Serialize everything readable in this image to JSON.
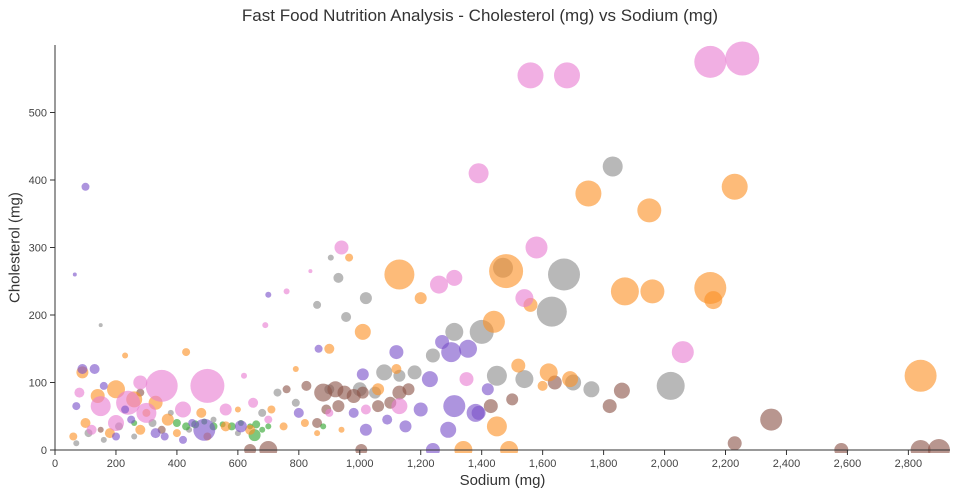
{
  "chart_data": {
    "type": "scatter",
    "title": "Fast Food Nutrition Analysis - Cholesterol (mg) vs Sodium (mg)",
    "xlabel": "Sodium (mg)",
    "ylabel": "Cholesterol (mg)",
    "xlim": [
      0,
      2930
    ],
    "ylim": [
      0,
      600
    ],
    "grid": false,
    "legend": "none",
    "marker_opacity": 0.62,
    "xticks": [
      {
        "value": 0,
        "label": "0"
      },
      {
        "value": 200,
        "label": "200"
      },
      {
        "value": 400,
        "label": "400"
      },
      {
        "value": 600,
        "label": "600"
      },
      {
        "value": 800,
        "label": "800"
      },
      {
        "value": 1000,
        "label": "1,000"
      },
      {
        "value": 1200,
        "label": "1,200"
      },
      {
        "value": 1400,
        "label": "1,400"
      },
      {
        "value": 1600,
        "label": "1,600"
      },
      {
        "value": 1800,
        "label": "1,800"
      },
      {
        "value": 2000,
        "label": "2,000"
      },
      {
        "value": 2200,
        "label": "2,200"
      },
      {
        "value": 2400,
        "label": "2,400"
      },
      {
        "value": 2600,
        "label": "2,600"
      },
      {
        "value": 2800,
        "label": "2,800"
      }
    ],
    "yticks": [
      {
        "value": 0,
        "label": "0"
      },
      {
        "value": 100,
        "label": "100"
      },
      {
        "value": 200,
        "label": "200"
      },
      {
        "value": 300,
        "label": "300"
      },
      {
        "value": 400,
        "label": "400"
      },
      {
        "value": 500,
        "label": "500"
      }
    ],
    "point_format": "[sodium_mg, cholesterol_mg, bubble_radius_px]",
    "series": [
      {
        "name": "gray",
        "color": "#8c8c8c",
        "points": [
          [
            70,
            10,
            3
          ],
          [
            110,
            25,
            4
          ],
          [
            160,
            15,
            3
          ],
          [
            210,
            35,
            4
          ],
          [
            260,
            20,
            3
          ],
          [
            320,
            40,
            4
          ],
          [
            150,
            185,
            2
          ],
          [
            380,
            55,
            3
          ],
          [
            440,
            30,
            3
          ],
          [
            520,
            45,
            3
          ],
          [
            600,
            25,
            3
          ],
          [
            680,
            55,
            4
          ],
          [
            730,
            85,
            4
          ],
          [
            790,
            70,
            4
          ],
          [
            860,
            215,
            4
          ],
          [
            905,
            285,
            3
          ],
          [
            930,
            255,
            5
          ],
          [
            955,
            197,
            5
          ],
          [
            900,
            90,
            5
          ],
          [
            1000,
            90,
            7
          ],
          [
            1020,
            225,
            6
          ],
          [
            1050,
            85,
            6
          ],
          [
            1080,
            115,
            8
          ],
          [
            1130,
            110,
            6
          ],
          [
            1180,
            115,
            7
          ],
          [
            1240,
            140,
            7
          ],
          [
            1310,
            175,
            9
          ],
          [
            1400,
            175,
            12
          ],
          [
            1450,
            110,
            10
          ],
          [
            1470,
            270,
            10
          ],
          [
            1540,
            105,
            9
          ],
          [
            1630,
            205,
            15
          ],
          [
            1670,
            260,
            16
          ],
          [
            1700,
            100,
            8
          ],
          [
            1760,
            90,
            8
          ],
          [
            1830,
            420,
            10
          ],
          [
            2020,
            95,
            14
          ]
        ]
      },
      {
        "name": "brown",
        "color": "#8c564b",
        "points": [
          [
            150,
            30,
            3
          ],
          [
            280,
            85,
            4
          ],
          [
            350,
            30,
            4
          ],
          [
            640,
            0,
            6
          ],
          [
            700,
            0,
            9
          ],
          [
            760,
            90,
            4
          ],
          [
            825,
            95,
            5
          ],
          [
            860,
            40,
            5
          ],
          [
            880,
            85,
            9
          ],
          [
            890,
            60,
            5
          ],
          [
            920,
            90,
            8
          ],
          [
            930,
            65,
            6
          ],
          [
            950,
            85,
            7
          ],
          [
            980,
            80,
            7
          ],
          [
            1005,
            0,
            6
          ],
          [
            1010,
            85,
            6
          ],
          [
            1060,
            65,
            6
          ],
          [
            1100,
            70,
            6
          ],
          [
            1130,
            85,
            7
          ],
          [
            1160,
            90,
            6
          ],
          [
            1430,
            65,
            7
          ],
          [
            1500,
            75,
            6
          ],
          [
            1640,
            100,
            7
          ],
          [
            1820,
            65,
            7
          ],
          [
            1860,
            88,
            8
          ],
          [
            2230,
            10,
            7
          ],
          [
            2350,
            45,
            11
          ],
          [
            2580,
            0,
            7
          ],
          [
            2840,
            0,
            10
          ],
          [
            2900,
            0,
            11
          ]
        ]
      },
      {
        "name": "green",
        "color": "#2fa42d",
        "points": [
          [
            260,
            40,
            3
          ],
          [
            400,
            40,
            4
          ],
          [
            430,
            35,
            4
          ],
          [
            460,
            38,
            4
          ],
          [
            490,
            42,
            3
          ],
          [
            520,
            35,
            4
          ],
          [
            550,
            38,
            3
          ],
          [
            580,
            35,
            4
          ],
          [
            610,
            40,
            3
          ],
          [
            640,
            35,
            3
          ],
          [
            655,
            22,
            6
          ],
          [
            660,
            38,
            4
          ],
          [
            680,
            30,
            3
          ],
          [
            700,
            35,
            3
          ],
          [
            880,
            35,
            3
          ]
        ]
      },
      {
        "name": "orange",
        "color": "#fb9127",
        "points": [
          [
            60,
            20,
            4
          ],
          [
            90,
            115,
            6
          ],
          [
            100,
            40,
            5
          ],
          [
            140,
            80,
            7
          ],
          [
            180,
            25,
            5
          ],
          [
            200,
            90,
            9
          ],
          [
            230,
            140,
            3
          ],
          [
            260,
            75,
            8
          ],
          [
            280,
            30,
            5
          ],
          [
            300,
            55,
            4
          ],
          [
            330,
            70,
            7
          ],
          [
            370,
            45,
            6
          ],
          [
            400,
            25,
            4
          ],
          [
            430,
            145,
            4
          ],
          [
            480,
            55,
            5
          ],
          [
            500,
            20,
            4
          ],
          [
            560,
            35,
            5
          ],
          [
            600,
            60,
            3
          ],
          [
            640,
            30,
            5
          ],
          [
            710,
            60,
            4
          ],
          [
            750,
            35,
            4
          ],
          [
            790,
            120,
            3
          ],
          [
            820,
            40,
            4
          ],
          [
            860,
            25,
            3
          ],
          [
            900,
            150,
            5
          ],
          [
            940,
            30,
            3
          ],
          [
            965,
            285,
            4
          ],
          [
            1010,
            175,
            8
          ],
          [
            1060,
            90,
            6
          ],
          [
            1120,
            120,
            5
          ],
          [
            1130,
            260,
            15
          ],
          [
            1200,
            225,
            6
          ],
          [
            1340,
            0,
            9
          ],
          [
            1440,
            190,
            11
          ],
          [
            1450,
            35,
            10
          ],
          [
            1480,
            265,
            17
          ],
          [
            1490,
            0,
            9
          ],
          [
            1520,
            125,
            7
          ],
          [
            1560,
            215,
            7
          ],
          [
            1600,
            95,
            5
          ],
          [
            1620,
            115,
            9
          ],
          [
            1690,
            105,
            8
          ],
          [
            1750,
            380,
            13
          ],
          [
            1870,
            235,
            14
          ],
          [
            1950,
            355,
            12
          ],
          [
            1960,
            235,
            12
          ],
          [
            2150,
            240,
            16
          ],
          [
            2160,
            222,
            9
          ],
          [
            2230,
            390,
            13
          ],
          [
            2840,
            110,
            16
          ]
        ]
      },
      {
        "name": "pink",
        "color": "#e87ed2",
        "points": [
          [
            80,
            85,
            5
          ],
          [
            120,
            30,
            5
          ],
          [
            150,
            65,
            10
          ],
          [
            200,
            40,
            8
          ],
          [
            240,
            70,
            12
          ],
          [
            280,
            100,
            7
          ],
          [
            300,
            55,
            10
          ],
          [
            350,
            95,
            16
          ],
          [
            420,
            60,
            8
          ],
          [
            500,
            95,
            17
          ],
          [
            560,
            60,
            6
          ],
          [
            620,
            110,
            3
          ],
          [
            650,
            70,
            5
          ],
          [
            690,
            185,
            3
          ],
          [
            700,
            45,
            4
          ],
          [
            760,
            235,
            3
          ],
          [
            838,
            265,
            2
          ],
          [
            900,
            55,
            4
          ],
          [
            940,
            300,
            7
          ],
          [
            1020,
            60,
            5
          ],
          [
            1130,
            65,
            8
          ],
          [
            1260,
            245,
            9
          ],
          [
            1310,
            255,
            8
          ],
          [
            1350,
            105,
            7
          ],
          [
            1390,
            410,
            10
          ],
          [
            1540,
            225,
            9
          ],
          [
            1560,
            555,
            13
          ],
          [
            1580,
            300,
            11
          ],
          [
            1680,
            555,
            13
          ],
          [
            2060,
            145,
            11
          ],
          [
            2150,
            575,
            16
          ],
          [
            2255,
            580,
            17
          ]
        ]
      },
      {
        "name": "purple",
        "color": "#7a52c9",
        "points": [
          [
            65,
            260,
            2
          ],
          [
            70,
            65,
            4
          ],
          [
            90,
            120,
            5
          ],
          [
            100,
            390,
            4
          ],
          [
            130,
            120,
            5
          ],
          [
            160,
            95,
            4
          ],
          [
            200,
            20,
            4
          ],
          [
            230,
            60,
            4
          ],
          [
            250,
            45,
            4
          ],
          [
            330,
            25,
            5
          ],
          [
            360,
            20,
            4
          ],
          [
            420,
            15,
            4
          ],
          [
            450,
            40,
            4
          ],
          [
            490,
            30,
            11
          ],
          [
            610,
            35,
            6
          ],
          [
            700,
            230,
            3
          ],
          [
            800,
            55,
            5
          ],
          [
            865,
            150,
            4
          ],
          [
            980,
            55,
            5
          ],
          [
            1010,
            112,
            6
          ],
          [
            1020,
            30,
            6
          ],
          [
            1090,
            45,
            5
          ],
          [
            1120,
            145,
            7
          ],
          [
            1150,
            35,
            6
          ],
          [
            1200,
            60,
            7
          ],
          [
            1230,
            105,
            8
          ],
          [
            1240,
            0,
            7
          ],
          [
            1270,
            160,
            7
          ],
          [
            1290,
            30,
            8
          ],
          [
            1300,
            145,
            10
          ],
          [
            1310,
            65,
            11
          ],
          [
            1355,
            150,
            9
          ],
          [
            1380,
            55,
            9
          ],
          [
            1390,
            55,
            7
          ],
          [
            1420,
            90,
            6
          ]
        ]
      }
    ]
  }
}
